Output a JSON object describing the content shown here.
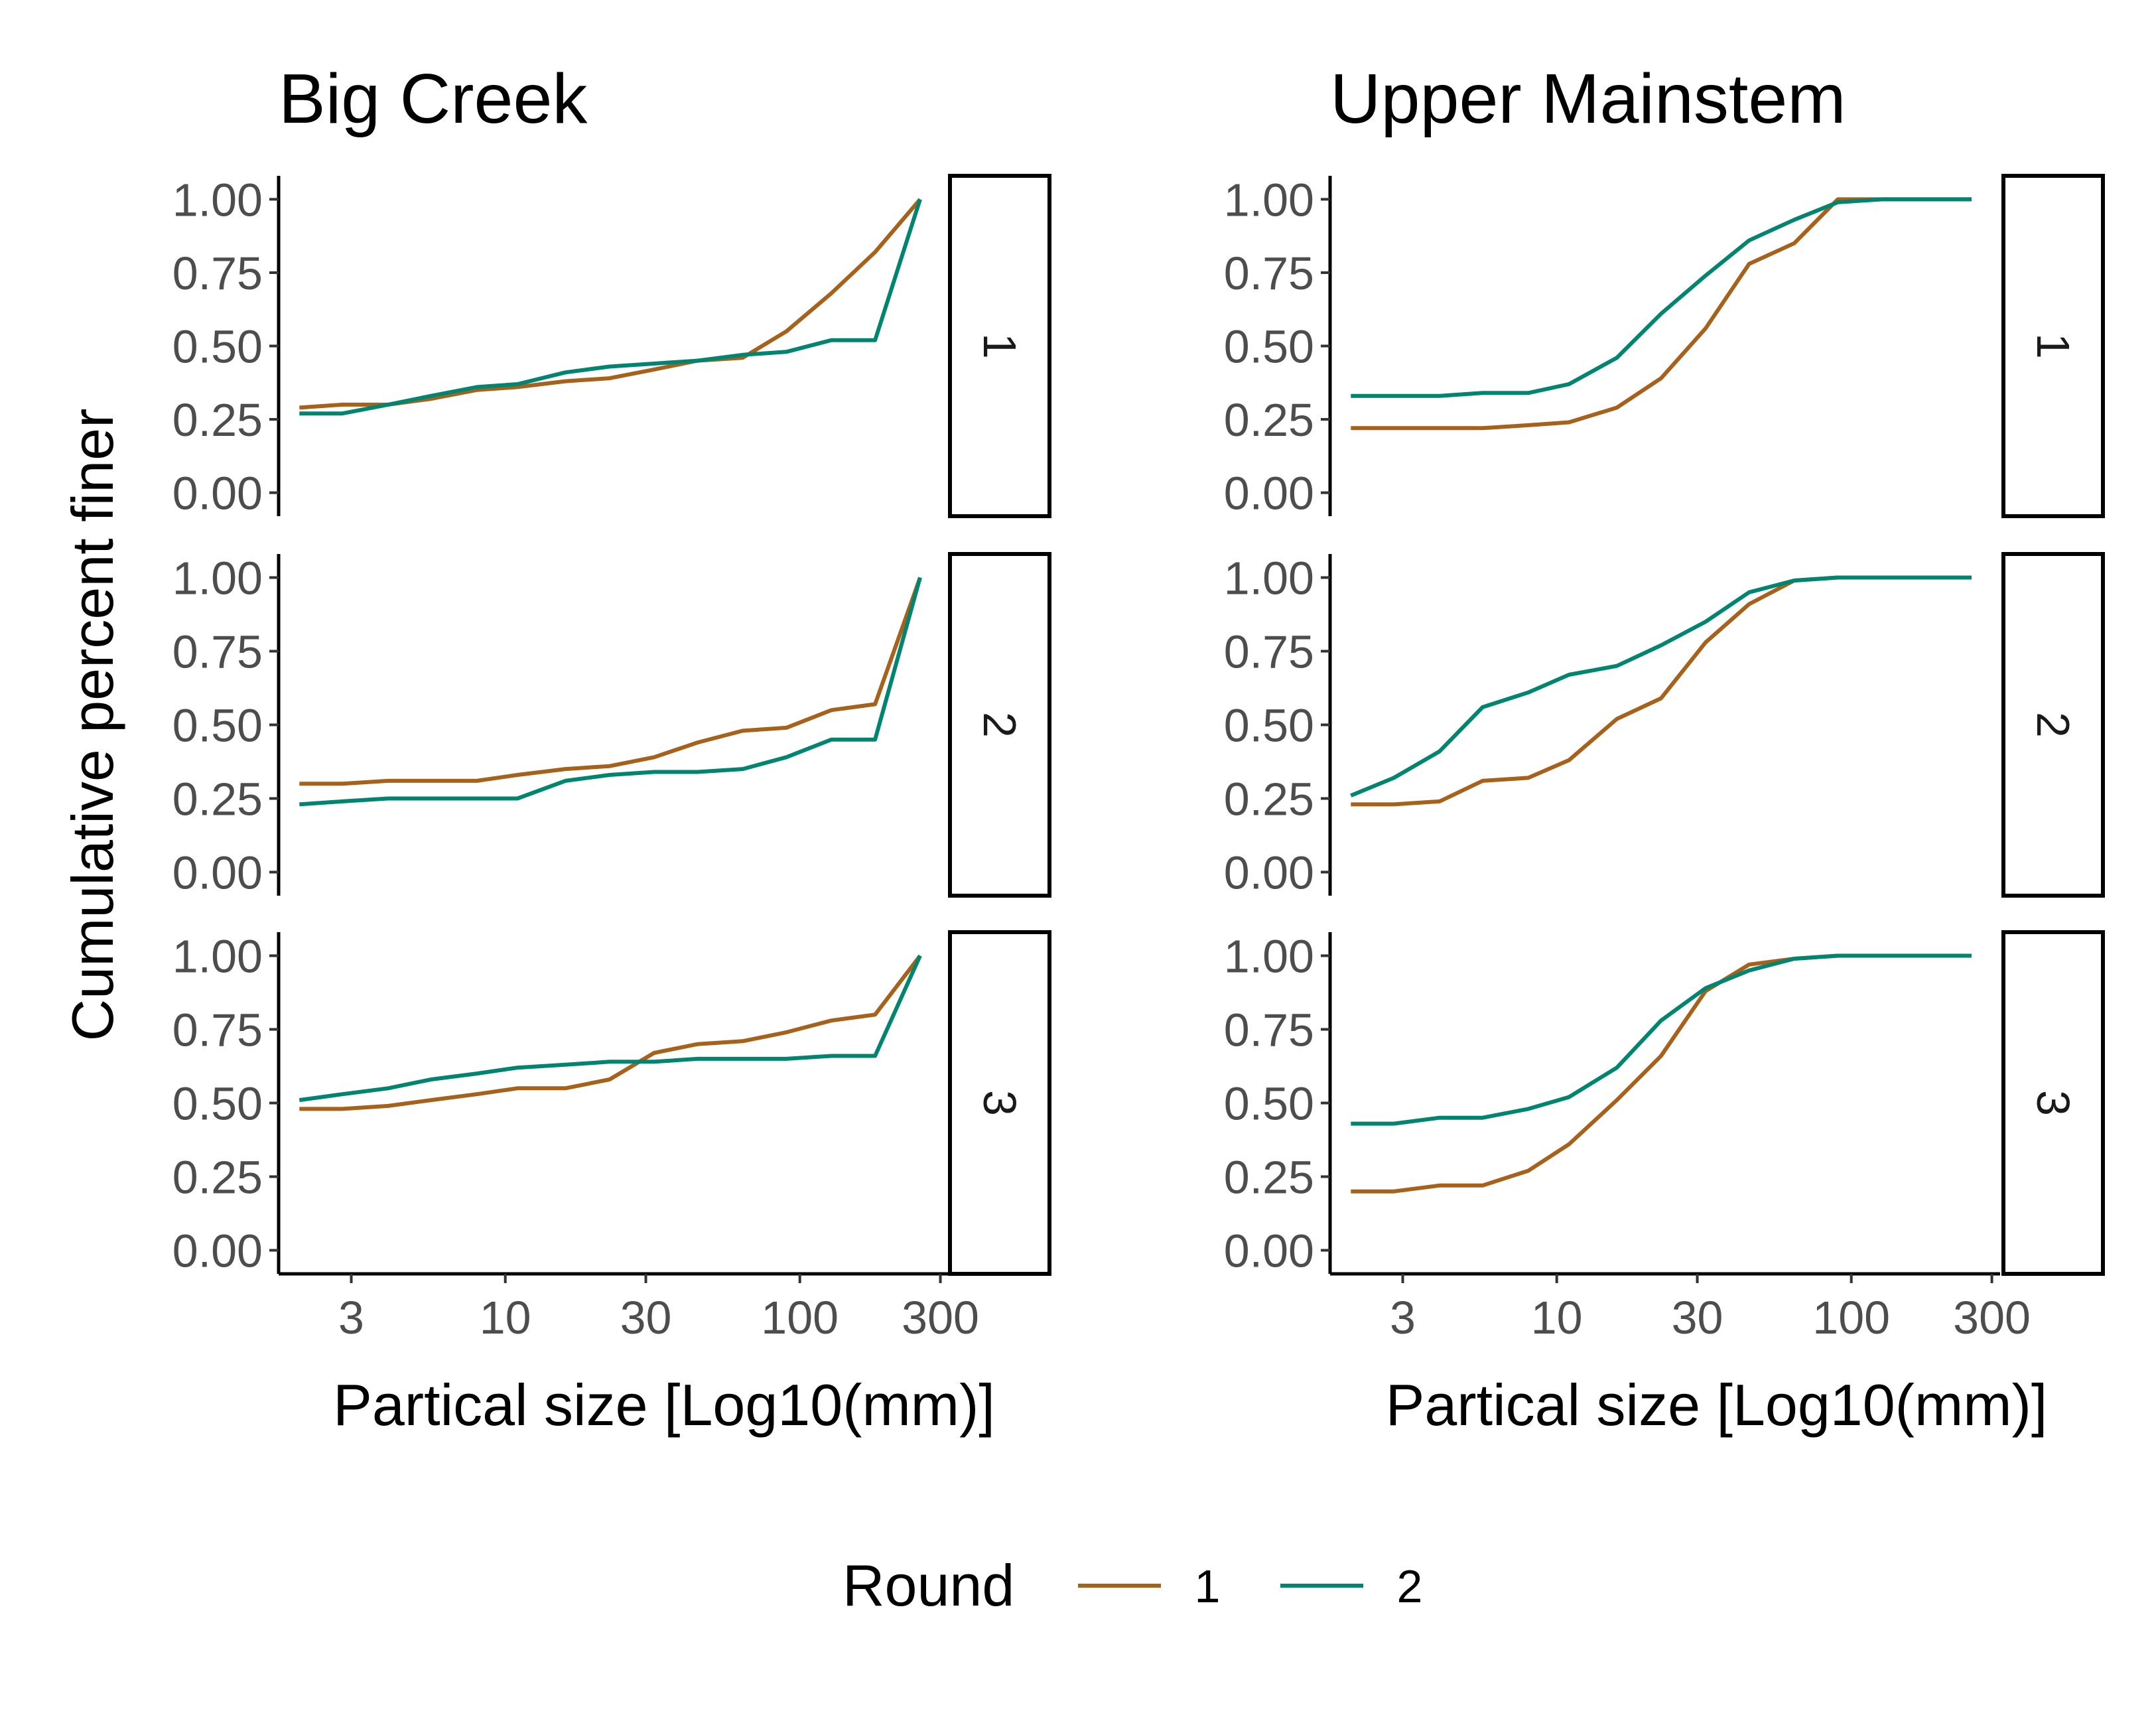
{
  "chart_data": {
    "type": "line",
    "ylabel": "Cumulative percent finer",
    "y_scale": "linear",
    "x_scale": "log10",
    "ylim": [
      -0.08,
      1.08
    ],
    "xlim": [
      1.7,
      320
    ],
    "y_ticks": [
      "0.00",
      "0.25",
      "0.50",
      "0.75",
      "1.00"
    ],
    "y_tick_values": [
      0,
      0.25,
      0.5,
      0.75,
      1
    ],
    "x_ticks": [
      "3",
      "10",
      "30",
      "100",
      "300"
    ],
    "x_tick_values": [
      3,
      10,
      30,
      100,
      300
    ],
    "grid": false,
    "legend": {
      "title": "Round",
      "position": "bottom",
      "entries": [
        {
          "label": "1",
          "color": "#a6611a"
        },
        {
          "label": "2",
          "color": "#018571"
        }
      ]
    },
    "x": [
      2,
      2.8,
      4,
      5.6,
      8,
      11,
      16,
      22.6,
      32,
      45,
      64,
      90,
      128,
      180,
      256
    ],
    "panels": [
      {
        "title": "Big Creek",
        "xlabel": "Partical size [Log10(mm)]",
        "facets": [
          {
            "label": "1",
            "series": [
              {
                "name": "1",
                "color": "#a6611a",
                "values": [
                  0.29,
                  0.3,
                  0.3,
                  0.32,
                  0.35,
                  0.36,
                  0.38,
                  0.39,
                  0.42,
                  0.45,
                  0.46,
                  0.55,
                  0.68,
                  0.82,
                  1.0
                ]
              },
              {
                "name": "2",
                "color": "#018571",
                "values": [
                  0.27,
                  0.27,
                  0.3,
                  0.33,
                  0.36,
                  0.37,
                  0.41,
                  0.43,
                  0.44,
                  0.45,
                  0.47,
                  0.48,
                  0.52,
                  0.52,
                  1.0
                ]
              }
            ]
          },
          {
            "label": "2",
            "series": [
              {
                "name": "1",
                "color": "#a6611a",
                "values": [
                  0.3,
                  0.3,
                  0.31,
                  0.31,
                  0.31,
                  0.33,
                  0.35,
                  0.36,
                  0.39,
                  0.44,
                  0.48,
                  0.49,
                  0.55,
                  0.57,
                  1.0
                ]
              },
              {
                "name": "2",
                "color": "#018571",
                "values": [
                  0.23,
                  0.24,
                  0.25,
                  0.25,
                  0.25,
                  0.25,
                  0.31,
                  0.33,
                  0.34,
                  0.34,
                  0.35,
                  0.39,
                  0.45,
                  0.45,
                  1.0
                ]
              }
            ]
          },
          {
            "label": "3",
            "series": [
              {
                "name": "1",
                "color": "#a6611a",
                "values": [
                  0.48,
                  0.48,
                  0.49,
                  0.51,
                  0.53,
                  0.55,
                  0.55,
                  0.58,
                  0.67,
                  0.7,
                  0.71,
                  0.74,
                  0.78,
                  0.8,
                  1.0
                ]
              },
              {
                "name": "2",
                "color": "#018571",
                "values": [
                  0.51,
                  0.53,
                  0.55,
                  0.58,
                  0.6,
                  0.62,
                  0.63,
                  0.64,
                  0.64,
                  0.65,
                  0.65,
                  0.65,
                  0.66,
                  0.66,
                  1.0
                ]
              }
            ]
          }
        ]
      },
      {
        "title": "Upper Mainstem",
        "xlabel": "Partical size [Log10(mm)]",
        "facets": [
          {
            "label": "1",
            "series": [
              {
                "name": "1",
                "color": "#a6611a",
                "values": [
                  0.22,
                  0.22,
                  0.22,
                  0.22,
                  0.23,
                  0.24,
                  0.29,
                  0.39,
                  0.56,
                  0.78,
                  0.85,
                  1.0,
                  1.0,
                  1.0,
                  1.0
                ]
              },
              {
                "name": "2",
                "color": "#018571",
                "values": [
                  0.33,
                  0.33,
                  0.33,
                  0.34,
                  0.34,
                  0.37,
                  0.46,
                  0.61,
                  0.74,
                  0.86,
                  0.93,
                  0.99,
                  1.0,
                  1.0,
                  1.0
                ]
              }
            ]
          },
          {
            "label": "2",
            "series": [
              {
                "name": "1",
                "color": "#a6611a",
                "values": [
                  0.23,
                  0.23,
                  0.24,
                  0.31,
                  0.32,
                  0.38,
                  0.52,
                  0.59,
                  0.78,
                  0.91,
                  0.99,
                  1.0,
                  1.0,
                  1.0,
                  1.0
                ]
              },
              {
                "name": "2",
                "color": "#018571",
                "values": [
                  0.26,
                  0.32,
                  0.41,
                  0.56,
                  0.61,
                  0.67,
                  0.7,
                  0.77,
                  0.85,
                  0.95,
                  0.99,
                  1.0,
                  1.0,
                  1.0,
                  1.0
                ]
              }
            ]
          },
          {
            "label": "3",
            "series": [
              {
                "name": "1",
                "color": "#a6611a",
                "values": [
                  0.2,
                  0.2,
                  0.22,
                  0.22,
                  0.27,
                  0.36,
                  0.51,
                  0.66,
                  0.88,
                  0.97,
                  0.99,
                  1.0,
                  1.0,
                  1.0,
                  1.0
                ]
              },
              {
                "name": "2",
                "color": "#018571",
                "values": [
                  0.43,
                  0.43,
                  0.45,
                  0.45,
                  0.48,
                  0.52,
                  0.62,
                  0.78,
                  0.89,
                  0.95,
                  0.99,
                  1.0,
                  1.0,
                  1.0,
                  1.0
                ]
              }
            ]
          }
        ]
      }
    ]
  }
}
